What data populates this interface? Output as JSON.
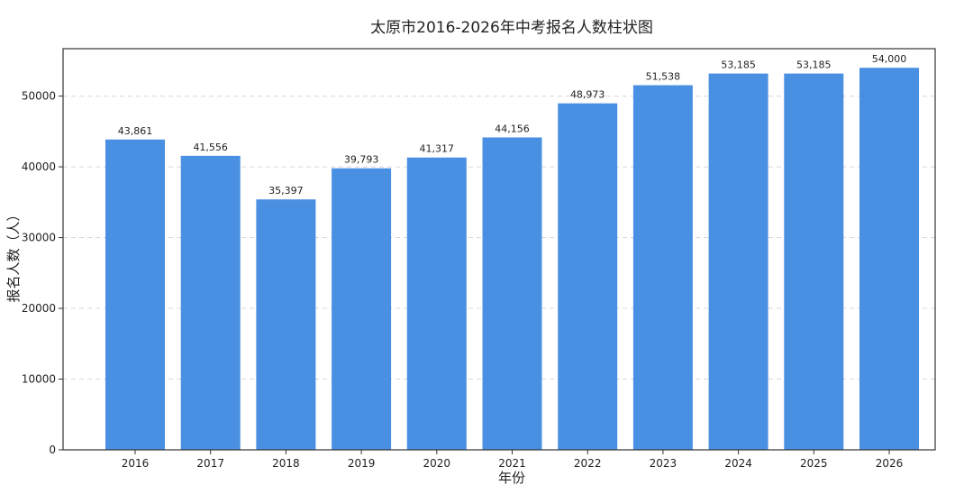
{
  "chart_data": {
    "type": "bar",
    "title": "太原市2016-2026年中考报名人数柱状图",
    "xlabel": "年份",
    "ylabel": "报名人数（人）",
    "categories": [
      "2016",
      "2017",
      "2018",
      "2019",
      "2020",
      "2021",
      "2022",
      "2023",
      "2024",
      "2025",
      "2026"
    ],
    "values": [
      43861,
      41556,
      35397,
      39793,
      41317,
      44156,
      48973,
      51538,
      53185,
      53185,
      54000
    ],
    "data_labels": [
      "43,861",
      "41,556",
      "35,397",
      "39,793",
      "41,317",
      "44,156",
      "48,973",
      "51,538",
      "53,185",
      "53,185",
      "54,000"
    ],
    "ylim": [
      0,
      56700
    ],
    "yticks": [
      0,
      10000,
      20000,
      30000,
      40000,
      50000
    ],
    "grid": true,
    "bar_color": "#4a90e2"
  }
}
